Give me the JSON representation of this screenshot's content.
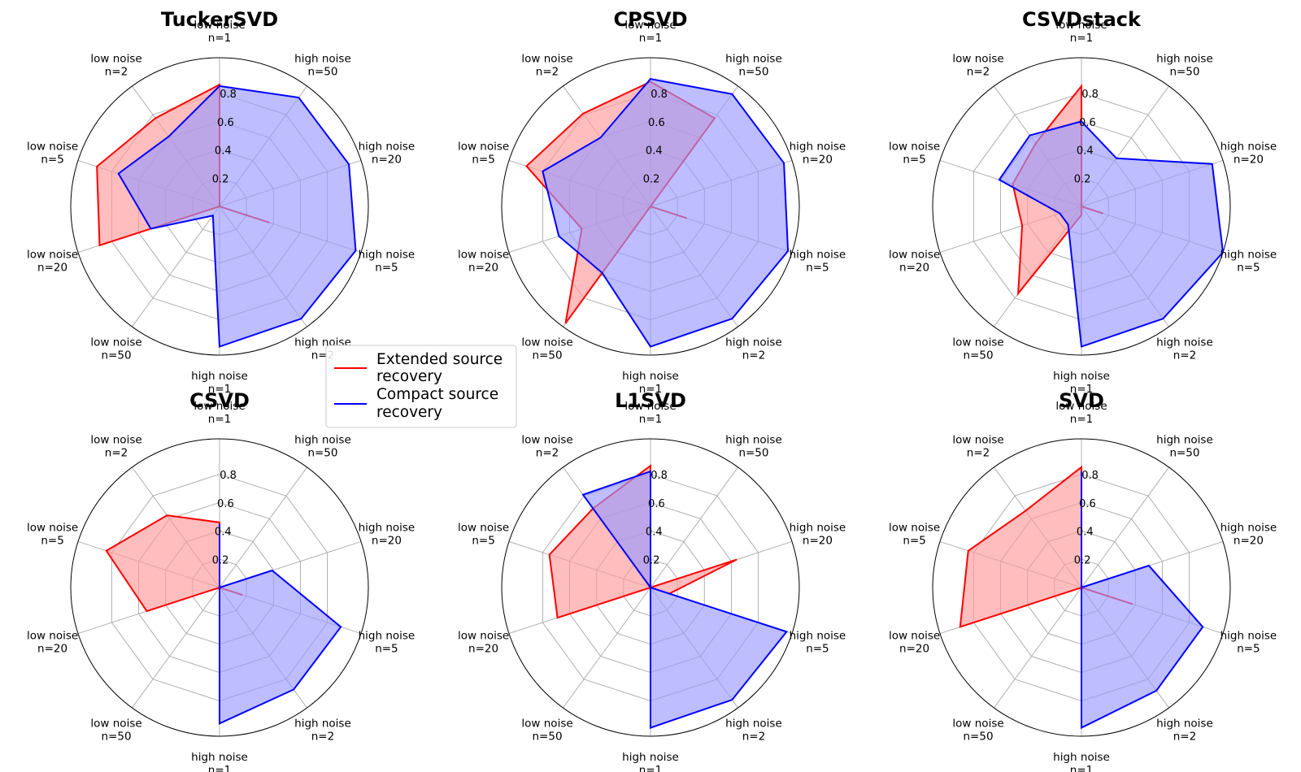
{
  "colors": {
    "extended": "#ff0000",
    "compact": "#0000ff",
    "extended_fill": "#ff9999",
    "compact_fill": "#9999ff",
    "grid": "#b0b0b0",
    "frame": "#000000"
  },
  "legend": {
    "extended_line1": "Extended source",
    "extended_line2": "recovery",
    "compact_line1": "Compact source",
    "compact_line2": "recovery"
  },
  "chart_data": [
    {
      "type": "radar",
      "title": "TuckerSVD",
      "axes": [
        "low noise\nn=1",
        "high noise\nn=50",
        "high noise\nn=20",
        "high noise\nn=5",
        "high noise\nn=2",
        "high noise\nn=1",
        "low noise\nn=50",
        "low noise\nn=20",
        "low noise\nn=5",
        "low noise\nn=2"
      ],
      "rlim": [
        0,
        1.05
      ],
      "rticks": [
        0.2,
        0.4,
        0.6,
        0.8
      ],
      "rtick_labels": [
        "0.2",
        "0.4",
        "0.6",
        "0.8"
      ],
      "series": [
        {
          "name": "Extended source recovery",
          "values": [
            0.86,
            0.0,
            0.0,
            0.37,
            0.0,
            0.0,
            0.0,
            0.89,
            0.91,
            0.77
          ]
        },
        {
          "name": "Compact source recovery",
          "values": [
            0.85,
            0.95,
            0.96,
            1.01,
            0.98,
            0.99,
            0.08,
            0.51,
            0.75,
            0.61
          ]
        }
      ]
    },
    {
      "type": "radar",
      "title": "CPSVD",
      "axes": [
        "low noise\nn=1",
        "high noise\nn=50",
        "high noise\nn=20",
        "high noise\nn=5",
        "high noise\nn=2",
        "high noise\nn=1",
        "low noise\nn=50",
        "low noise\nn=20",
        "low noise\nn=5",
        "low noise\nn=2"
      ],
      "rlim": [
        0,
        1.05
      ],
      "rticks": [
        0.2,
        0.4,
        0.6,
        0.8
      ],
      "rtick_labels": [
        "0.2",
        "0.4",
        "0.6",
        "0.8"
      ],
      "series": [
        {
          "name": "Extended source recovery",
          "values": [
            0.88,
            0.77,
            0.0,
            0.27,
            0.0,
            0.0,
            1.02,
            0.51,
            0.92,
            0.81
          ]
        },
        {
          "name": "Compact source recovery",
          "values": [
            0.9,
            0.98,
            0.99,
            1.02,
            0.98,
            0.99,
            0.58,
            0.68,
            0.8,
            0.6
          ]
        }
      ]
    },
    {
      "type": "radar",
      "title": "CSVDstack",
      "axes": [
        "low noise\nn=1",
        "high noise\nn=50",
        "high noise\nn=20",
        "high noise\nn=5",
        "high noise\nn=2",
        "high noise\nn=1",
        "low noise\nn=50",
        "low noise\nn=20",
        "low noise\nn=5",
        "low noise\nn=2"
      ],
      "rlim": [
        0,
        1.05
      ],
      "rticks": [
        0.2,
        0.4,
        0.6,
        0.8
      ],
      "rtick_labels": [
        "0.2",
        "0.4",
        "0.6",
        "0.8"
      ],
      "series": [
        {
          "name": "Extended source recovery",
          "values": [
            0.85,
            0.0,
            0.0,
            0.16,
            0.0,
            0.06,
            0.76,
            0.44,
            0.51,
            0.55
          ]
        },
        {
          "name": "Compact source recovery",
          "values": [
            0.6,
            0.42,
            0.97,
            1.05,
            0.98,
            0.99,
            0.16,
            0.16,
            0.61,
            0.62
          ]
        }
      ]
    },
    {
      "type": "radar",
      "title": "CSVD",
      "axes": [
        "low noise\nn=1",
        "high noise\nn=50",
        "high noise\nn=20",
        "high noise\nn=5",
        "high noise\nn=2",
        "high noise\nn=1",
        "low noise\nn=50",
        "low noise\nn=20",
        "low noise\nn=5",
        "low noise\nn=2"
      ],
      "rlim": [
        0,
        1.05
      ],
      "rticks": [
        0.2,
        0.4,
        0.6,
        0.8
      ],
      "rtick_labels": [
        "0.2",
        "0.4",
        "0.6",
        "0.8"
      ],
      "series": [
        {
          "name": "Extended source recovery",
          "values": [
            0.46,
            0.0,
            0.0,
            0.17,
            0.0,
            0.0,
            0.0,
            0.54,
            0.84,
            0.63
          ]
        },
        {
          "name": "Compact source recovery",
          "values": [
            0.45,
            0.0,
            0.39,
            0.9,
            0.89,
            0.96,
            0.0,
            0.0,
            0.0,
            0.0
          ]
        }
      ]
    },
    {
      "type": "radar",
      "title": "L1SVD",
      "axes": [
        "low noise\nn=1",
        "high noise\nn=50",
        "high noise\nn=20",
        "high noise\nn=5",
        "high noise\nn=2",
        "high noise\nn=1",
        "low noise\nn=50",
        "low noise\nn=20",
        "low noise\nn=5",
        "low noise\nn=2"
      ],
      "rlim": [
        0,
        1.05
      ],
      "rticks": [
        0.2,
        0.4,
        0.6,
        0.8
      ],
      "rtick_labels": [
        "0.2",
        "0.4",
        "0.6",
        "0.8"
      ],
      "series": [
        {
          "name": "Extended source recovery",
          "values": [
            0.86,
            0.0,
            0.64,
            0.14,
            0.0,
            0.0,
            0.0,
            0.69,
            0.75,
            0.69
          ]
        },
        {
          "name": "Compact source recovery",
          "values": [
            0.82,
            0.0,
            0.0,
            1.01,
            0.98,
            0.99,
            0.0,
            0.0,
            0.0,
            0.81
          ]
        }
      ]
    },
    {
      "type": "radar",
      "title": "SVD",
      "axes": [
        "low noise\nn=1",
        "high noise\nn=50",
        "high noise\nn=20",
        "high noise\nn=5",
        "high noise\nn=2",
        "high noise\nn=1",
        "low noise\nn=50",
        "low noise\nn=20",
        "low noise\nn=5",
        "low noise\nn=2"
      ],
      "rlim": [
        0,
        1.05
      ],
      "rticks": [
        0.2,
        0.4,
        0.6,
        0.8
      ],
      "rtick_labels": [
        "0.2",
        "0.4",
        "0.6",
        "0.8"
      ],
      "series": [
        {
          "name": "Extended source recovery",
          "values": [
            0.85,
            0.0,
            0.0,
            0.38,
            0.0,
            0.0,
            0.0,
            0.9,
            0.84,
            0.67
          ]
        },
        {
          "name": "Compact source recovery",
          "values": [
            0.82,
            0.0,
            0.5,
            0.9,
            0.9,
            0.99,
            0.0,
            0.0,
            0.0,
            0.0
          ]
        }
      ]
    }
  ]
}
